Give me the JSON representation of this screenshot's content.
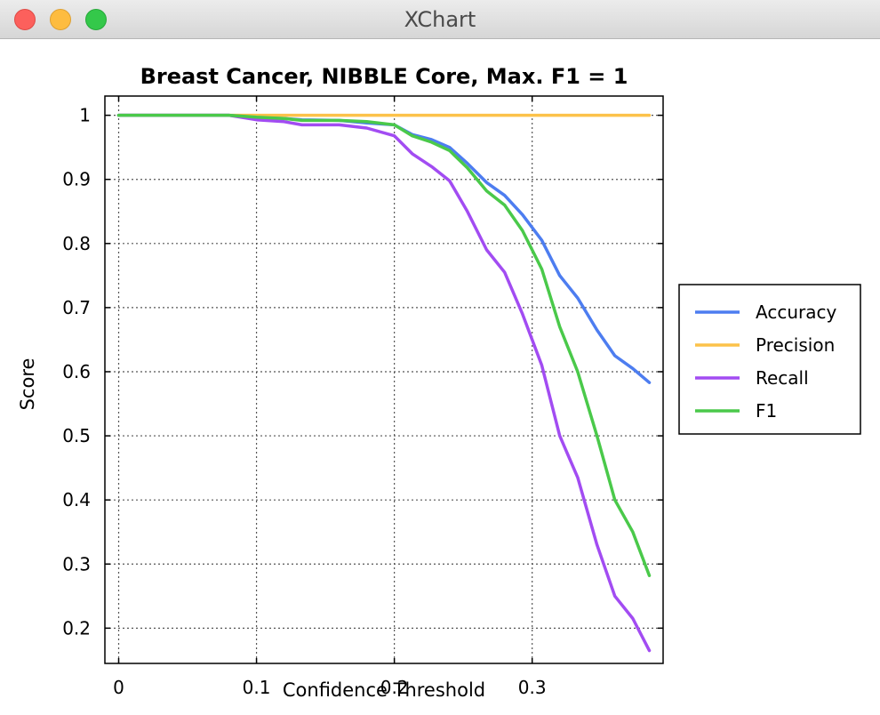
{
  "window": {
    "title": "XChart"
  },
  "chart_data": {
    "type": "line",
    "title": "Breast Cancer, NIBBLE Core, Max. F1 = 1",
    "xlabel": "Confidence Threshold",
    "ylabel": "Score",
    "xlim": [
      -0.01,
      0.395
    ],
    "ylim": [
      0.145,
      1.03
    ],
    "x_ticks": [
      0,
      0.1,
      0.2,
      0.3
    ],
    "x_tick_labels": [
      "0",
      "0.1",
      "0.2",
      "0.3"
    ],
    "y_ticks": [
      0.2,
      0.3,
      0.4,
      0.5,
      0.6,
      0.7,
      0.8,
      0.9,
      1
    ],
    "y_tick_labels": [
      "0.2",
      "0.3",
      "0.4",
      "0.5",
      "0.6",
      "0.7",
      "0.8",
      "0.9",
      "1"
    ],
    "grid": true,
    "legend_position": "right",
    "x": [
      0,
      0.08,
      0.1,
      0.12,
      0.133,
      0.16,
      0.18,
      0.2,
      0.213,
      0.227,
      0.24,
      0.253,
      0.267,
      0.28,
      0.293,
      0.307,
      0.32,
      0.333,
      0.347,
      0.36,
      0.373,
      0.385
    ],
    "series": [
      {
        "name": "Accuracy",
        "color": "#4d7df0",
        "values": [
          1,
          1,
          0.996,
          0.995,
          0.993,
          0.992,
          0.988,
          0.985,
          0.97,
          0.962,
          0.95,
          0.925,
          0.895,
          0.875,
          0.845,
          0.805,
          0.75,
          0.715,
          0.665,
          0.625,
          0.605,
          0.583
        ]
      },
      {
        "name": "Precision",
        "color": "#fcc24a",
        "values": [
          1,
          1,
          1,
          1,
          1,
          1,
          1,
          1,
          1,
          1,
          1,
          1,
          1,
          1,
          1,
          1,
          1,
          1,
          1,
          1,
          1,
          1
        ]
      },
      {
        "name": "Recall",
        "color": "#a24cf2",
        "values": [
          1,
          1,
          0.993,
          0.99,
          0.985,
          0.985,
          0.98,
          0.968,
          0.94,
          0.92,
          0.898,
          0.85,
          0.79,
          0.755,
          0.69,
          0.61,
          0.5,
          0.435,
          0.33,
          0.25,
          0.215,
          0.165
        ]
      },
      {
        "name": "F1",
        "color": "#4ac94a",
        "values": [
          1,
          1,
          0.997,
          0.995,
          0.992,
          0.992,
          0.99,
          0.985,
          0.968,
          0.958,
          0.945,
          0.918,
          0.882,
          0.86,
          0.82,
          0.76,
          0.67,
          0.6,
          0.5,
          0.4,
          0.35,
          0.282
        ]
      }
    ]
  }
}
